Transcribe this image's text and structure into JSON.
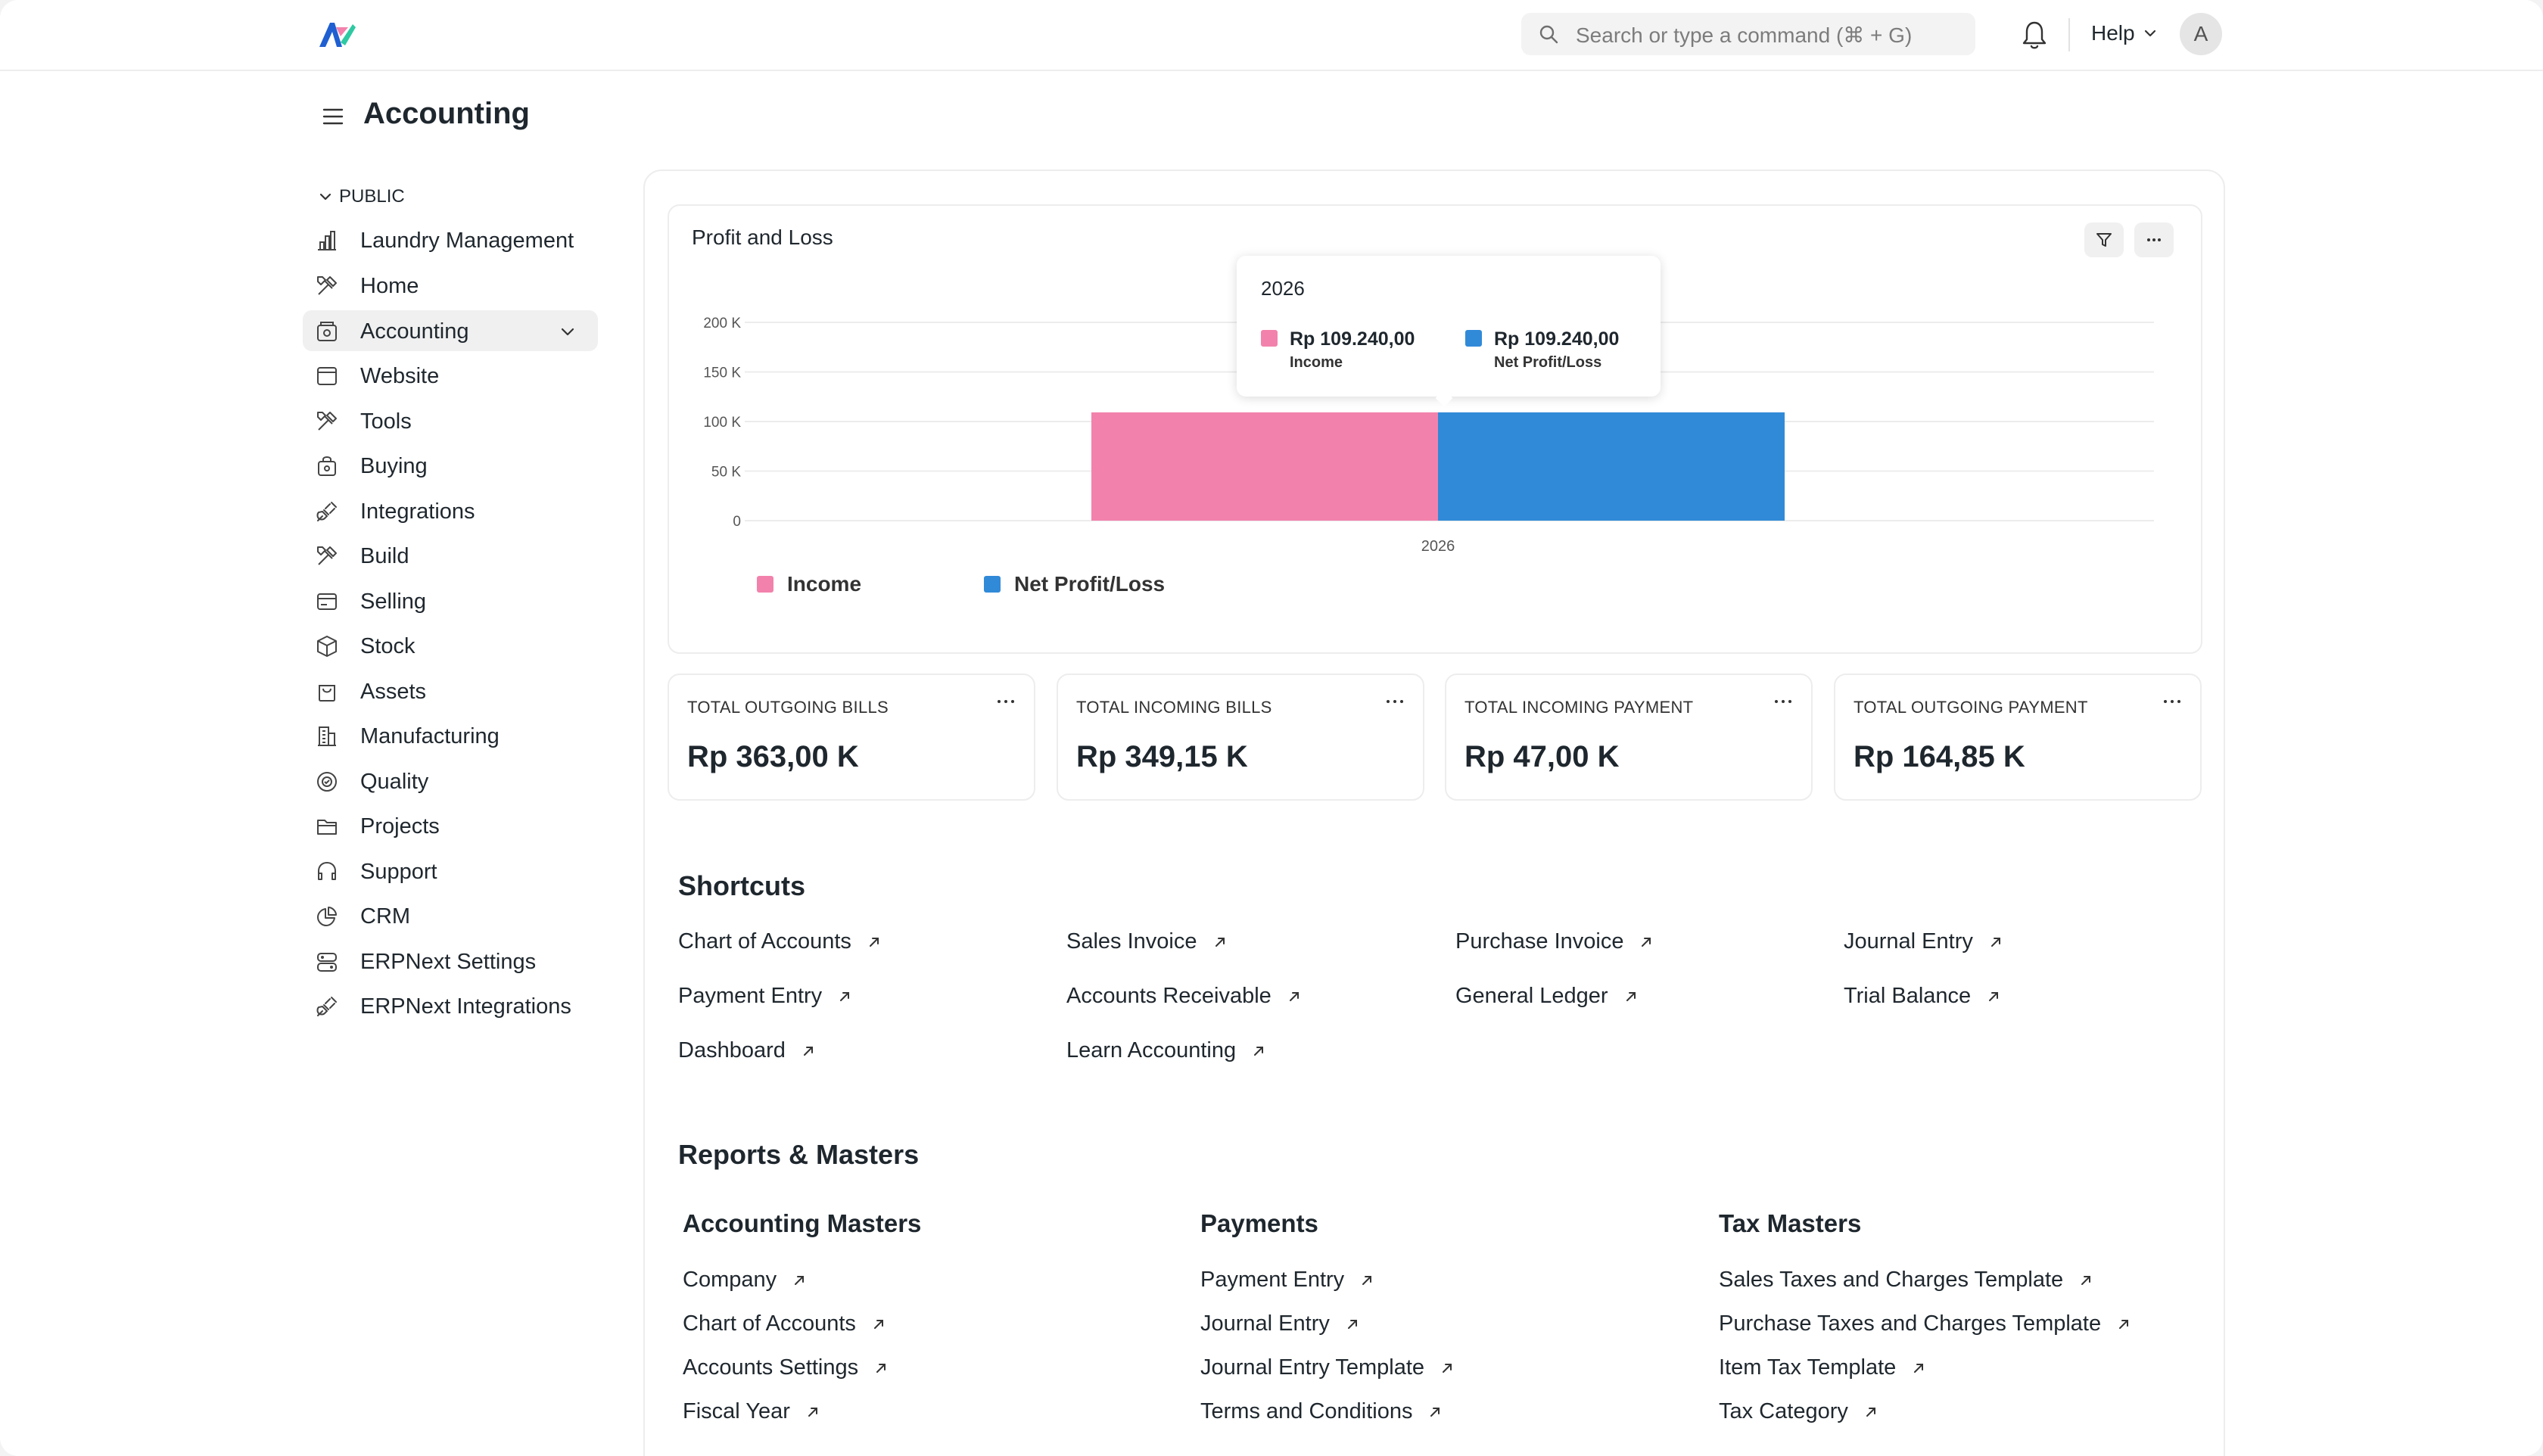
{
  "navbar": {
    "search_placeholder": "Search or type a command (⌘ + G)",
    "help_label": "Help",
    "avatar_initial": "A"
  },
  "page": {
    "title": "Accounting"
  },
  "sidebar": {
    "section_label": "PUBLIC",
    "items": [
      {
        "label": "Laundry Management",
        "icon": "bar-chart-icon"
      },
      {
        "label": "Home",
        "icon": "tools-icon"
      },
      {
        "label": "Accounting",
        "icon": "accounting-icon",
        "active": true
      },
      {
        "label": "Website",
        "icon": "browser-window-icon"
      },
      {
        "label": "Tools",
        "icon": "tools-icon"
      },
      {
        "label": "Buying",
        "icon": "shopping-bag-icon"
      },
      {
        "label": "Integrations",
        "icon": "plug-icon"
      },
      {
        "label": "Build",
        "icon": "tools-icon"
      },
      {
        "label": "Selling",
        "icon": "card-icon"
      },
      {
        "label": "Stock",
        "icon": "box-icon"
      },
      {
        "label": "Assets",
        "icon": "bag-icon"
      },
      {
        "label": "Manufacturing",
        "icon": "building-icon"
      },
      {
        "label": "Quality",
        "icon": "quality-badge-icon"
      },
      {
        "label": "Projects",
        "icon": "folder-icon"
      },
      {
        "label": "Support",
        "icon": "headset-icon"
      },
      {
        "label": "CRM",
        "icon": "pie-chart-icon"
      },
      {
        "label": "ERPNext Settings",
        "icon": "settings-server-icon"
      },
      {
        "label": "ERPNext Integrations",
        "icon": "plug-icon"
      }
    ]
  },
  "chart": {
    "title": "Profit and Loss",
    "tooltip": {
      "title": "2026",
      "entries": [
        {
          "value": "Rp 109.240,00",
          "name": "Income"
        },
        {
          "value": "Rp 109.240,00",
          "name": "Net Profit/Loss"
        }
      ]
    },
    "legend": [
      "Income",
      "Net Profit/Loss"
    ]
  },
  "chart_data": {
    "type": "bar",
    "title": "Profit and Loss",
    "categories": [
      "2026"
    ],
    "series": [
      {
        "name": "Income",
        "values": [
          109240
        ],
        "color": "#f282ac"
      },
      {
        "name": "Net Profit/Loss",
        "values": [
          109240
        ],
        "color": "#318ad8"
      }
    ],
    "yticks": [
      0,
      50000,
      100000,
      150000,
      200000
    ],
    "ytick_labels": [
      "0",
      "50 K",
      "100 K",
      "150 K",
      "200 K"
    ],
    "ylim": [
      0,
      200000
    ],
    "grid": true,
    "legend_position": "bottom-left"
  },
  "number_cards": [
    {
      "label": "TOTAL OUTGOING BILLS",
      "value": "Rp 363,00 K"
    },
    {
      "label": "TOTAL INCOMING BILLS",
      "value": "Rp 349,15 K"
    },
    {
      "label": "TOTAL INCOMING PAYMENT",
      "value": "Rp 47,00 K"
    },
    {
      "label": "TOTAL OUTGOING PAYMENT",
      "value": "Rp 164,85 K"
    }
  ],
  "shortcuts": {
    "title": "Shortcuts",
    "items": [
      "Chart of Accounts",
      "Sales Invoice",
      "Purchase Invoice",
      "Journal Entry",
      "Payment Entry",
      "Accounts Receivable",
      "General Ledger",
      "Trial Balance",
      "Dashboard",
      "Learn Accounting"
    ]
  },
  "reports": {
    "title": "Reports & Masters",
    "columns": [
      {
        "title": "Accounting Masters",
        "links": [
          "Company",
          "Chart of Accounts",
          "Accounts Settings",
          "Fiscal Year"
        ]
      },
      {
        "title": "Payments",
        "links": [
          "Payment Entry",
          "Journal Entry",
          "Journal Entry Template",
          "Terms and Conditions"
        ]
      },
      {
        "title": "Tax Masters",
        "links": [
          "Sales Taxes and Charges Template",
          "Purchase Taxes and Charges Template",
          "Item Tax Template",
          "Tax Category"
        ]
      }
    ]
  },
  "colors": {
    "income": "#f282ac",
    "net_profit_loss": "#318ad8",
    "active_sidebar_bg": "#f0f0f0"
  }
}
